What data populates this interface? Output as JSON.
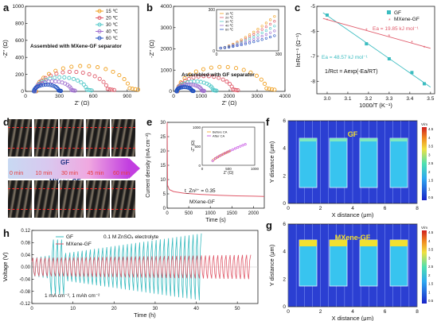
{
  "panels": {
    "a": "a",
    "b": "b",
    "c": "c",
    "d": "d",
    "e": "e",
    "f": "f",
    "g": "g",
    "h": "h"
  },
  "chart_data": [
    {
      "id": "a",
      "type": "scatter",
      "xlabel": "Z' (Ω)",
      "ylabel": "-Z'' (Ω)",
      "xlim": [
        0,
        1000
      ],
      "ylim": [
        0,
        1000
      ],
      "xticks": [
        0,
        300,
        600,
        900
      ],
      "yticks": [
        0,
        200,
        400,
        600,
        800,
        1000
      ],
      "annotation": "Assembled with MXene-GF separator",
      "series": [
        {
          "name": "15 ℃",
          "color": "#f0a020",
          "x0": 95,
          "diam": 830
        },
        {
          "name": "20 ℃",
          "color": "#e05a6a",
          "x0": 90,
          "diam": 640
        },
        {
          "name": "30 ℃",
          "color": "#50c8c8",
          "x0": 85,
          "diam": 460
        },
        {
          "name": "40 ℃",
          "color": "#a070d0",
          "x0": 80,
          "diam": 330
        },
        {
          "name": "60 ℃",
          "color": "#2050c0",
          "x0": 75,
          "diam": 220
        }
      ]
    },
    {
      "id": "b",
      "type": "scatter",
      "xlabel": "Z' (Ω)",
      "ylabel": "-Z'' (Ω)",
      "xlim": [
        0,
        4000
      ],
      "ylim": [
        0,
        4000
      ],
      "xticks": [
        0,
        1000,
        2000,
        3000,
        4000
      ],
      "yticks": [
        0,
        1000,
        2000,
        3000,
        4000
      ],
      "annotation": "Assembled with GF separator",
      "series": [
        {
          "name": "15 ℃",
          "color": "#f0a020",
          "x0": 150,
          "diam": 3200
        },
        {
          "name": "20 ℃",
          "color": "#e05a6a",
          "x0": 140,
          "diam": 2000
        },
        {
          "name": "30 ℃",
          "color": "#50c8c8",
          "x0": 130,
          "diam": 1300
        },
        {
          "name": "40 ℃",
          "color": "#a070d0",
          "x0": 120,
          "diam": 900
        },
        {
          "name": "60 ℃",
          "color": "#2050c0",
          "x0": 110,
          "diam": 560
        }
      ],
      "inset": {
        "xlim": [
          0,
          300
        ],
        "ylim": [
          0,
          300
        ],
        "xticks": [
          0,
          300
        ],
        "yticks": [
          0,
          300
        ]
      }
    },
    {
      "id": "c",
      "type": "scatter",
      "xlabel": "1000/T (K⁻¹)",
      "ylabel": "lnRct⁻¹ (Ω⁻¹)",
      "xlim": [
        2.95,
        3.52
      ],
      "ylim": [
        -8.5,
        -5
      ],
      "xticks": [
        3.0,
        3.1,
        3.2,
        3.3,
        3.4,
        3.5
      ],
      "yticks": [
        -8,
        -7,
        -6,
        -5
      ],
      "series": [
        {
          "name": "GF",
          "color": "#3bbcc0",
          "x": [
            3.0,
            3.19,
            3.3,
            3.41,
            3.47
          ],
          "y": [
            -5.35,
            -6.5,
            -7.1,
            -7.65,
            -8.1
          ]
        },
        {
          "name": "MXene-GF",
          "color": "#e05a6a",
          "x": [
            3.0,
            3.19,
            3.3,
            3.41,
            3.47
          ],
          "y": [
            -5.55,
            -5.95,
            -6.2,
            -6.45,
            -6.65
          ]
        }
      ],
      "annotations": [
        "Ea = 19.85 kJ mol⁻¹",
        "Ea = 48.57 kJ mol⁻¹",
        "1/Rct = Aexp(-Ea/RT)"
      ]
    },
    {
      "id": "e",
      "type": "line",
      "xlabel": "Time (s)",
      "ylabel": "Current density (mA cm⁻²)",
      "xlim": [
        0,
        2250
      ],
      "ylim": [
        0,
        30
      ],
      "xticks": [
        0,
        500,
        1000,
        1500,
        2000
      ],
      "yticks": [
        0,
        5,
        10,
        15,
        20,
        25,
        30
      ],
      "annotations": [
        "t_Zn²⁺ = 0.35",
        "MXene-GF"
      ],
      "series": [
        {
          "name": "MXene-GF",
          "color": "#e05a6a",
          "x": [
            0,
            10,
            50,
            150,
            400,
            800,
            1200,
            1600,
            2000,
            2250
          ],
          "y": [
            30,
            8,
            6.5,
            5.8,
            5.2,
            4.8,
            4.5,
            4.3,
            4.2,
            4.1
          ]
        }
      ],
      "inset": {
        "xlabel": "Z' (Ω)",
        "ylabel": "-Z'' (Ω)",
        "xlim": [
          0,
          1000
        ],
        "ylim": [
          0,
          1000
        ],
        "xticks": [
          0,
          500,
          1000
        ],
        "yticks": [
          0,
          500,
          1000
        ],
        "series": [
          {
            "name": "Before CA",
            "color": "#f0a020"
          },
          {
            "name": "After CA",
            "color": "#c040e0"
          }
        ]
      }
    },
    {
      "id": "h",
      "type": "line",
      "xlabel": "Time (h)",
      "ylabel": "Voltage (V)",
      "xlim": [
        0,
        55
      ],
      "ylim": [
        -0.12,
        0.12
      ],
      "xticks": [
        0,
        10,
        20,
        30,
        40,
        50
      ],
      "yticks": [
        -0.12,
        -0.08,
        -0.04,
        0.0,
        0.04,
        0.08,
        0.12
      ],
      "annotations": [
        "0.1 M ZnSO₄ electrolyte",
        "1 mA cm⁻², 1 mAh cm⁻²"
      ],
      "series": [
        {
          "name": "GF",
          "color": "#3bbcc0",
          "x": [
            0,
            41
          ],
          "amp": [
            0.03,
            0.11
          ]
        },
        {
          "name": "MXene-GF",
          "color": "#e05a6a",
          "x": [
            0,
            53
          ],
          "amp": [
            0.03,
            0.04
          ]
        }
      ]
    }
  ],
  "panel_d": {
    "times": [
      "0 min",
      "10 min",
      "30 min",
      "45 min",
      "60 min"
    ],
    "top_label": "GF",
    "bottom_label": "MXene-GF"
  },
  "panel_fg": {
    "xlabel": "X distance (μm)",
    "ylabel": "Y distance (μm)",
    "xticks": [
      "0",
      "2",
      "4",
      "6",
      "8"
    ],
    "yticks": [
      "0",
      "2",
      "4",
      "6"
    ],
    "f_title": "GF",
    "g_title": "MXene-GF",
    "cbar_unit": "V/m",
    "cbar_ticks": [
      "4.5",
      "4",
      "3.5",
      "3",
      "2.5",
      "2",
      "1.5",
      "1",
      "0.5"
    ]
  }
}
